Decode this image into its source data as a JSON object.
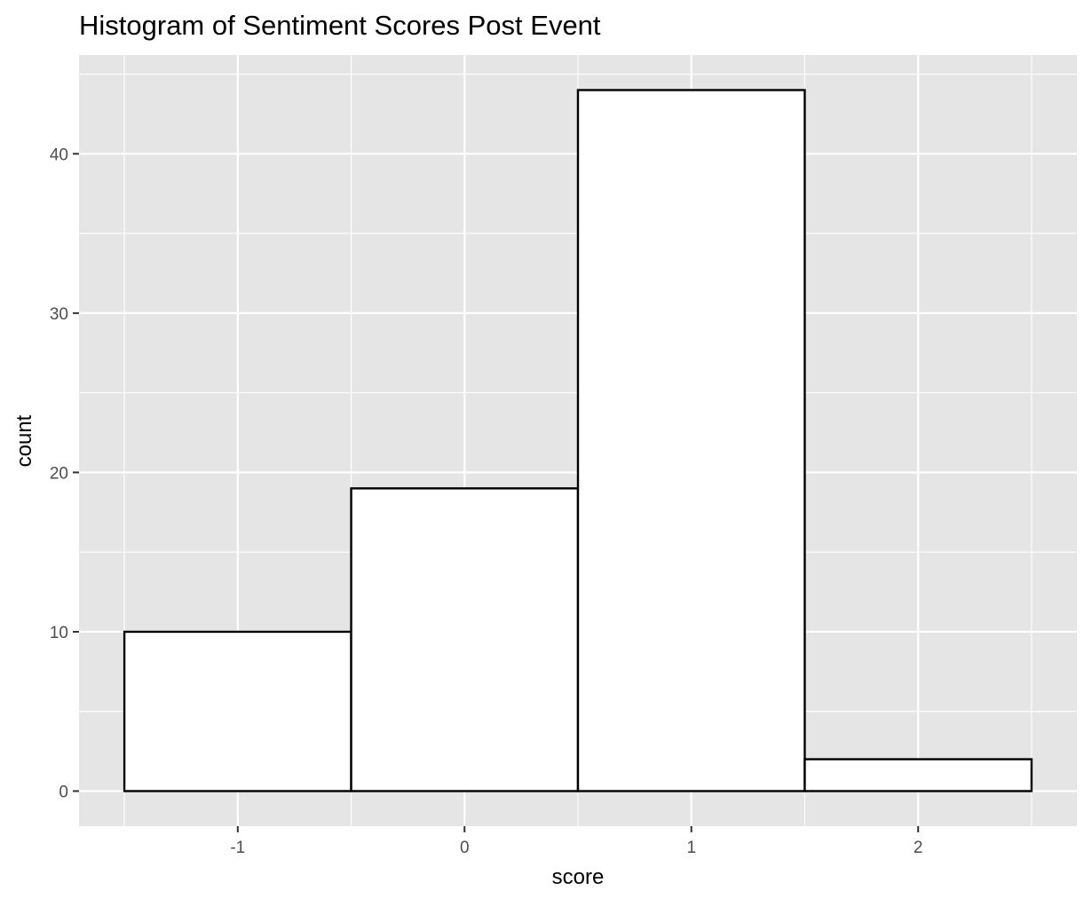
{
  "chart_data": {
    "type": "bar",
    "title": "Histogram of Sentiment Scores Post Event",
    "xlabel": "score",
    "ylabel": "count",
    "bins": [
      {
        "center": -1,
        "count": 10
      },
      {
        "center": 0,
        "count": 19
      },
      {
        "center": 1,
        "count": 44
      },
      {
        "center": 2,
        "count": 2
      }
    ],
    "x_ticks": [
      -1,
      0,
      1,
      2
    ],
    "x_tick_labels": [
      "-1",
      "0",
      "1",
      "2"
    ],
    "y_ticks": [
      0,
      10,
      20,
      30,
      40
    ],
    "y_tick_labels": [
      "0",
      "10",
      "20",
      "30",
      "40"
    ],
    "xlim": [
      -1.7,
      2.7
    ],
    "ylim": [
      -2.2,
      46.2
    ],
    "grid": true,
    "legend": "none",
    "colors": {
      "panel_background": "#e5e5e5",
      "grid_line": "#ffffff",
      "bar_fill": "#ffffff",
      "bar_outline": "#000000",
      "tick_label": "#4d4d4d"
    }
  }
}
